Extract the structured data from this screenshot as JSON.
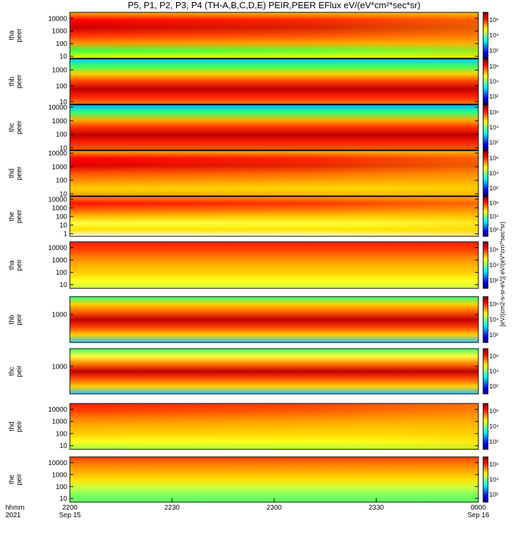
{
  "title": "P5, P1, P2, P3, P4 (TH-A,B,C,D,E) PEIR,PEER EFlux eV/(eV*cm²*sec*sr)",
  "colorbar_label": "[eV/(cm2-s-sr-eV)] eV/(eV*cm²*sec*sr)",
  "x_axis": {
    "label_row1": "hhmm",
    "label_row2": "2021",
    "ticks": [
      {
        "major": "2200",
        "minor": "Sep 15"
      },
      {
        "major": "2230",
        "minor": ""
      },
      {
        "major": "2300",
        "minor": ""
      },
      {
        "major": "2330",
        "minor": ""
      },
      {
        "major": "0000",
        "minor": "Sep 16"
      }
    ]
  },
  "chart_data": {
    "type": "heatmap",
    "x_range": [
      "2021-09-15 22:00",
      "2021-09-16 00:00"
    ],
    "colorbar_ticks": [
      "10²",
      "10⁴",
      "10⁶"
    ],
    "panels": [
      {
        "probe": "tha",
        "species": "peer",
        "yticks": [
          "10",
          "100",
          "1000",
          "10000"
        ],
        "yrange": [
          7,
          30000
        ]
      },
      {
        "probe": "thb",
        "species": "peer",
        "yticks": [
          "10",
          "100",
          "1000"
        ],
        "yrange": [
          7,
          5000
        ]
      },
      {
        "probe": "thc",
        "species": "peer",
        "yticks": [
          "10",
          "100",
          "1000",
          "10000"
        ],
        "yrange": [
          7,
          15000
        ]
      },
      {
        "probe": "thd",
        "species": "peer",
        "yticks": [
          "10",
          "100",
          "1000",
          "10000"
        ],
        "yrange": [
          7,
          15000
        ]
      },
      {
        "probe": "the",
        "species": "peer",
        "yticks": [
          "1",
          "10",
          "100",
          "1000",
          "10000"
        ],
        "yrange": [
          0.5,
          20000
        ]
      },
      {
        "probe": "tha",
        "species": "peir",
        "yticks": [
          "10",
          "100",
          "1000",
          "10000"
        ],
        "yrange": [
          5,
          30000
        ]
      },
      {
        "probe": "thb",
        "species": "peir",
        "yticks": [
          "1000"
        ],
        "yrange": [
          5,
          30000
        ]
      },
      {
        "probe": "thc",
        "species": "peir",
        "yticks": [
          "1000"
        ],
        "yrange": [
          5,
          30000
        ]
      },
      {
        "probe": "thd",
        "species": "peir",
        "yticks": [
          "10",
          "100",
          "1000",
          "10000"
        ],
        "yrange": [
          5,
          30000
        ]
      },
      {
        "probe": "the",
        "species": "peir",
        "yticks": [
          "10",
          "100",
          "1000",
          "10000"
        ],
        "yrange": [
          5,
          30000
        ]
      }
    ]
  }
}
